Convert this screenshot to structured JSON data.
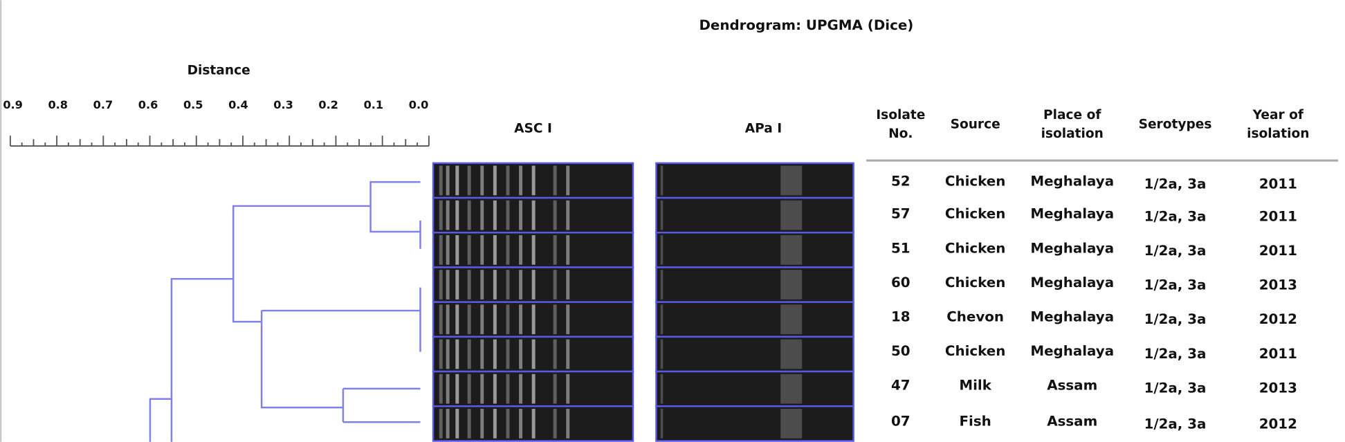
{
  "title": "Dendrogram: UPGMA (Dice)",
  "distance_axis": {
    "label": "Distance",
    "ticks": [
      "0.9",
      "0.8",
      "0.7",
      "0.6",
      "0.5",
      "0.4",
      "0.3",
      "0.2",
      "0.1",
      "0.0"
    ]
  },
  "gels": [
    "ASC I",
    "APa I"
  ],
  "table": {
    "headers": [
      [
        "Isolate",
        "No."
      ],
      [
        "Source"
      ],
      [
        "Place of",
        "isolation"
      ],
      [
        "Serotypes"
      ],
      [
        "Year of",
        "isolation"
      ]
    ],
    "rows": [
      [
        "52",
        "Chicken",
        "Meghalaya",
        "1/2a, 3a",
        "2011"
      ],
      [
        "57",
        "Chicken",
        "Meghalaya",
        "1/2a, 3a",
        "2011"
      ],
      [
        "51",
        "Chicken",
        "Meghalaya",
        "1/2a, 3a",
        "2011"
      ],
      [
        "60",
        "Chicken",
        "Meghalaya",
        "1/2a, 3a",
        "2013"
      ],
      [
        "18",
        "Chevon",
        "Meghalaya",
        "1/2a, 3a",
        "2012"
      ],
      [
        "50",
        "Chicken",
        "Meghalaya",
        "1/2a, 3a",
        "2011"
      ],
      [
        "47",
        "Milk",
        "Assam",
        "1/2a, 3a",
        "2013"
      ],
      [
        "07",
        "Fish",
        "Assam",
        "1/2a, 3a",
        "2012"
      ]
    ]
  }
}
